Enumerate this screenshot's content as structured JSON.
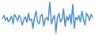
{
  "chart_data": {
    "type": "line",
    "tick_labels": false,
    "color": "#4a90d9",
    "x": [
      0,
      1,
      2,
      3,
      4,
      5,
      6,
      7,
      8,
      9,
      10,
      11,
      12,
      13,
      14,
      15,
      16,
      17,
      18,
      19,
      20,
      21,
      22,
      23,
      24,
      25,
      26,
      27,
      28,
      29,
      30,
      31,
      32,
      33,
      34,
      35,
      36,
      37,
      38,
      39,
      40,
      41,
      42,
      43,
      44,
      45,
      46,
      47,
      48,
      49,
      50,
      51,
      52,
      53,
      54,
      55,
      56,
      57,
      58,
      59
    ],
    "values": [
      52,
      60,
      48,
      55,
      45,
      50,
      58,
      40,
      62,
      55,
      47,
      60,
      53,
      38,
      50,
      57,
      44,
      65,
      48,
      52,
      30,
      55,
      70,
      45,
      40,
      58,
      62,
      35,
      50,
      55,
      48,
      90,
      40,
      52,
      60,
      20,
      55,
      65,
      45,
      50,
      75,
      35,
      58,
      48,
      62,
      40,
      85,
      30,
      55,
      50,
      60,
      45,
      70,
      52,
      38,
      65,
      58,
      48,
      62,
      55
    ],
    "xlim": [
      0,
      59
    ],
    "ylim": [
      20,
      90
    ]
  }
}
